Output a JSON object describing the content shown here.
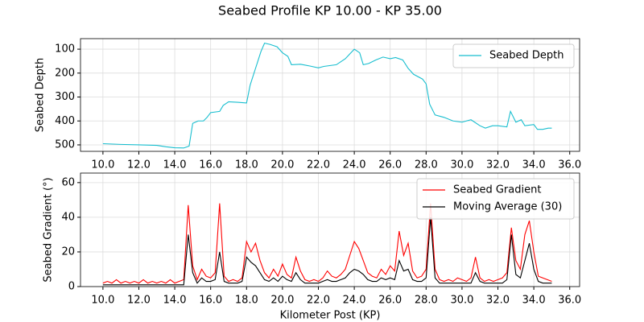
{
  "title": "Seabed Profile KP 10.00 - KP 35.00",
  "chart_data": [
    {
      "type": "line",
      "ylabel": "Seabed Depth",
      "ylabel_color": "#17becf",
      "x": [
        10.0,
        11.0,
        12.0,
        13.0,
        13.5,
        14.0,
        14.5,
        14.8,
        15.0,
        15.3,
        15.6,
        15.8,
        16.0,
        16.5,
        16.7,
        17.0,
        17.5,
        18.0,
        18.2,
        18.5,
        18.8,
        19.0,
        19.3,
        19.7,
        20.0,
        20.3,
        20.5,
        21.0,
        21.5,
        22.0,
        22.3,
        23.0,
        23.5,
        24.0,
        24.3,
        24.5,
        24.8,
        25.2,
        25.6,
        26.0,
        26.3,
        26.7,
        27.0,
        27.3,
        27.8,
        28.0,
        28.2,
        28.5,
        29.0,
        29.5,
        30.0,
        30.5,
        31.0,
        31.3,
        31.7,
        32.0,
        32.5,
        32.7,
        33.0,
        33.3,
        33.5,
        34.0,
        34.2,
        34.5,
        34.8,
        35.0
      ],
      "series": [
        {
          "name": "Seabed Depth",
          "color": "#17becf",
          "values": [
            495,
            498,
            500,
            502,
            508,
            512,
            513,
            505,
            410,
            400,
            400,
            385,
            365,
            360,
            335,
            320,
            322,
            325,
            250,
            180,
            110,
            75,
            80,
            90,
            115,
            130,
            165,
            163,
            170,
            178,
            172,
            165,
            140,
            100,
            115,
            165,
            160,
            145,
            133,
            140,
            135,
            145,
            180,
            205,
            225,
            245,
            330,
            375,
            385,
            400,
            405,
            395,
            420,
            430,
            420,
            420,
            425,
            360,
            405,
            395,
            420,
            415,
            435,
            435,
            430,
            430
          ]
        }
      ],
      "xlim": [
        8.75,
        36.55
      ],
      "xticks": [
        {
          "value": 10,
          "label": "10.0"
        },
        {
          "value": 12,
          "label": "12.0"
        },
        {
          "value": 14,
          "label": "14.0"
        },
        {
          "value": 16,
          "label": "16.0"
        },
        {
          "value": 18,
          "label": "18.0"
        },
        {
          "value": 20,
          "label": "20.0"
        },
        {
          "value": 22,
          "label": "22.0"
        },
        {
          "value": 24,
          "label": "24.0"
        },
        {
          "value": 26,
          "label": "26.0"
        },
        {
          "value": 28,
          "label": "28.0"
        },
        {
          "value": 30,
          "label": "30.0"
        },
        {
          "value": 32,
          "label": "32.0"
        },
        {
          "value": 34,
          "label": "34.0"
        },
        {
          "value": 36,
          "label": "36.0"
        }
      ],
      "ylim": [
        527,
        56
      ],
      "yticks": [
        100,
        200,
        300,
        400,
        500
      ],
      "grid": true,
      "legend": "upper right"
    },
    {
      "type": "line",
      "ylabel": "Seabed Gradient (°)",
      "ylabel_color": "#ff0000",
      "xlabel": "Kilometer Post (KP)",
      "x": [
        10,
        10.25,
        10.5,
        10.75,
        11,
        11.25,
        11.5,
        11.75,
        12,
        12.25,
        12.5,
        12.75,
        13,
        13.25,
        13.5,
        13.75,
        14,
        14.25,
        14.5,
        14.75,
        15,
        15.25,
        15.5,
        15.75,
        16,
        16.25,
        16.5,
        16.75,
        17,
        17.25,
        17.5,
        17.75,
        18,
        18.25,
        18.5,
        18.75,
        19,
        19.25,
        19.5,
        19.75,
        20,
        20.25,
        20.5,
        20.75,
        21,
        21.25,
        21.5,
        21.75,
        22,
        22.25,
        22.5,
        22.75,
        23,
        23.25,
        23.5,
        23.75,
        24,
        24.25,
        24.5,
        24.75,
        25,
        25.25,
        25.5,
        25.75,
        26,
        26.25,
        26.5,
        26.75,
        27,
        27.25,
        27.5,
        27.75,
        28,
        28.25,
        28.5,
        28.75,
        29,
        29.25,
        29.5,
        29.75,
        30,
        30.25,
        30.5,
        30.75,
        31,
        31.25,
        31.5,
        31.75,
        32,
        32.25,
        32.5,
        32.75,
        33,
        33.25,
        33.5,
        33.75,
        34,
        34.25,
        34.5,
        34.75,
        35
      ],
      "series": [
        {
          "name": "Seabed Gradient",
          "color": "#ff0000",
          "values": [
            2,
            3,
            2,
            4,
            2,
            3,
            2,
            3,
            2,
            4,
            2,
            3,
            2,
            3,
            2,
            4,
            2,
            3,
            4,
            47,
            12,
            4,
            10,
            6,
            5,
            8,
            48,
            6,
            3,
            4,
            3,
            5,
            26,
            20,
            25,
            15,
            8,
            5,
            10,
            6,
            13,
            7,
            5,
            17,
            9,
            4,
            3,
            4,
            3,
            5,
            9,
            6,
            5,
            7,
            10,
            18,
            26,
            22,
            15,
            8,
            6,
            5,
            10,
            7,
            12,
            9,
            32,
            18,
            25,
            9,
            5,
            6,
            10,
            48,
            10,
            4,
            3,
            4,
            3,
            5,
            4,
            3,
            5,
            17,
            5,
            3,
            4,
            3,
            4,
            5,
            8,
            34,
            15,
            10,
            30,
            38,
            20,
            6,
            5,
            4,
            3
          ]
        },
        {
          "name": "Moving Average (30)",
          "color": "#000000",
          "values": [
            1,
            1,
            1,
            1,
            1,
            1,
            1,
            1,
            1,
            1,
            1,
            1,
            1,
            1,
            1,
            1,
            1,
            1,
            1,
            30,
            8,
            2,
            5,
            3,
            3,
            4,
            20,
            3,
            2,
            2,
            2,
            3,
            17,
            14,
            12,
            8,
            4,
            3,
            5,
            3,
            6,
            4,
            3,
            8,
            4,
            2,
            2,
            2,
            2,
            3,
            4,
            3,
            3,
            4,
            5,
            8,
            10,
            9,
            7,
            4,
            3,
            3,
            5,
            4,
            5,
            4,
            15,
            9,
            10,
            4,
            3,
            3,
            5,
            40,
            5,
            2,
            2,
            2,
            2,
            2,
            2,
            2,
            2,
            8,
            3,
            2,
            2,
            2,
            2,
            2,
            4,
            30,
            7,
            5,
            15,
            25,
            10,
            3,
            2,
            2,
            2
          ]
        }
      ],
      "xlim": [
        8.75,
        36.55
      ],
      "xticks": [
        {
          "value": 10,
          "label": "10.0"
        },
        {
          "value": 12,
          "label": "12.0"
        },
        {
          "value": 14,
          "label": "14.0"
        },
        {
          "value": 16,
          "label": "16.0"
        },
        {
          "value": 18,
          "label": "18.0"
        },
        {
          "value": 20,
          "label": "20.0"
        },
        {
          "value": 22,
          "label": "22.0"
        },
        {
          "value": 24,
          "label": "24.0"
        },
        {
          "value": 26,
          "label": "26.0"
        },
        {
          "value": 28,
          "label": "28.0"
        },
        {
          "value": 30,
          "label": "30.0"
        },
        {
          "value": 32,
          "label": "32.0"
        },
        {
          "value": 34,
          "label": "34.0"
        },
        {
          "value": 36,
          "label": "36.0"
        }
      ],
      "ylim": [
        0,
        65.5
      ],
      "yticks": [
        0,
        20,
        40,
        60
      ],
      "grid": true,
      "legend": "upper right"
    }
  ]
}
